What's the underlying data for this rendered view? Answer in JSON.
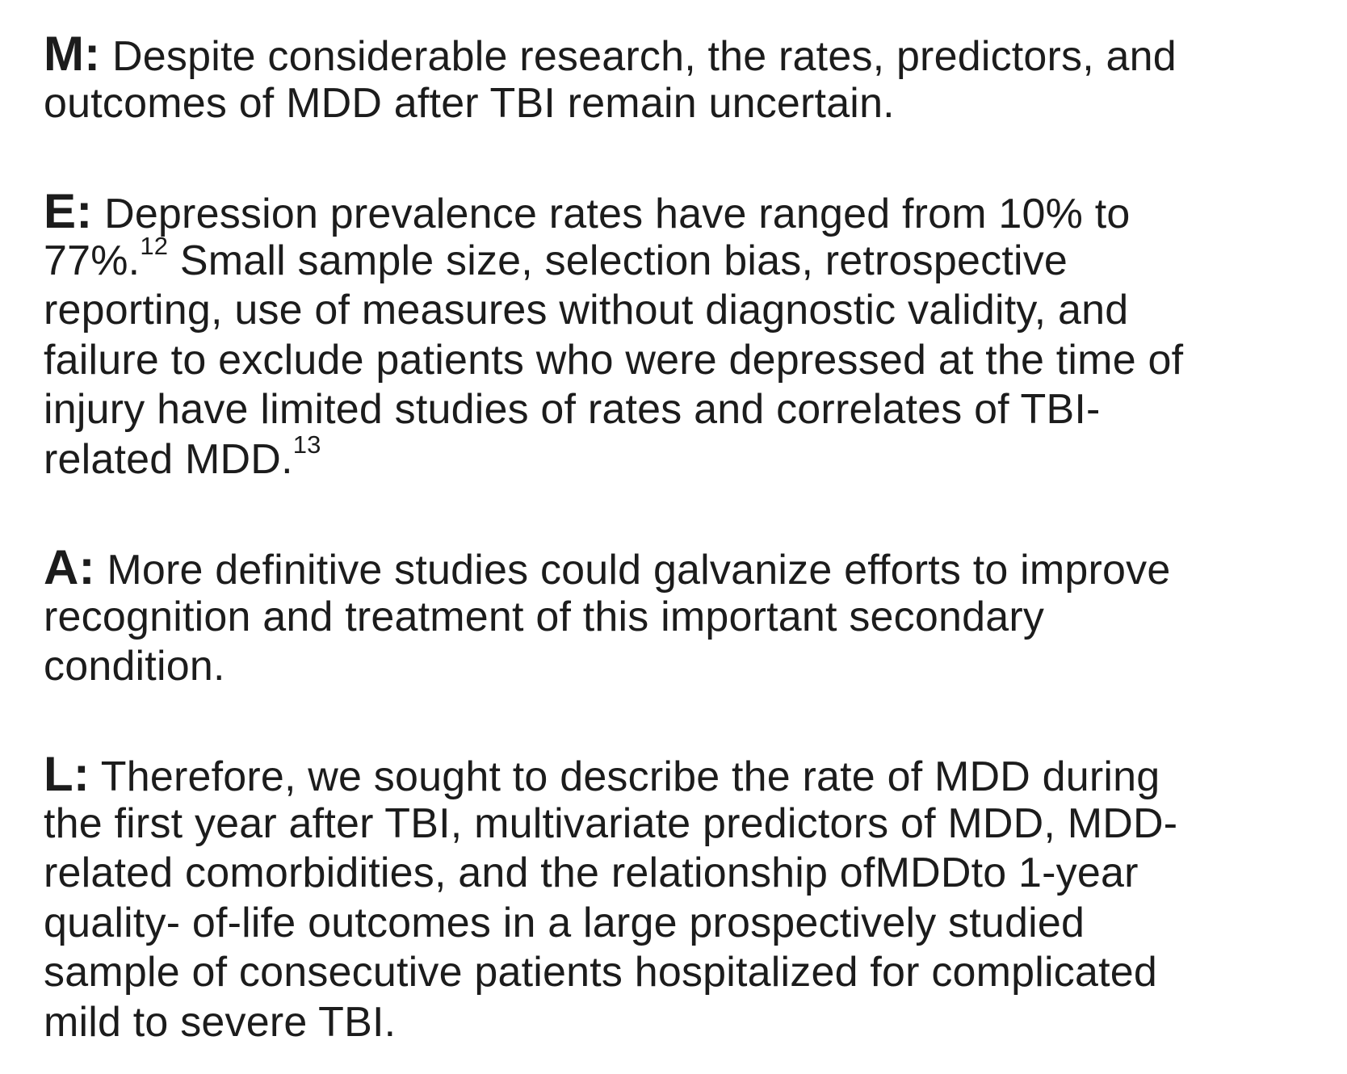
{
  "paragraphs": {
    "m": {
      "letter": "M:",
      "lines": [
        "Despite considerable research, the rates, predictors, and",
        "outcomes of MDD after TBI remain uncertain."
      ]
    },
    "e": {
      "letter": "E:",
      "line1": "Depression prevalence rates have ranged from 10% to",
      "line2_pre": "77%.",
      "ref1": "12",
      "line2_post": "Small sample size, selection bias, retrospective",
      "line3": "reporting, use of measures without diagnostic validity, and",
      "line4": "failure to exclude patients who were depressed at the time of",
      "line5": "injury have limited studies of rates and correlates of TBI-",
      "line6_pre": "related MDD.",
      "ref2": "13"
    },
    "a": {
      "letter": "A:",
      "lines": [
        "More definitive studies could galvanize efforts to improve",
        "recognition and treatment of this important secondary",
        "condition."
      ]
    },
    "l": {
      "letter": "L:",
      "lines": [
        "Therefore, we sought to describe the rate of MDD during",
        "the first year after TBI, multivariate predictors of MDD, MDD-",
        "related comorbidities, and the relationship ofMDDto 1-year",
        "quality- of-life outcomes in a large prospectively studied",
        "sample of consecutive patients hospitalized for complicated",
        "mild to severe TBI."
      ]
    }
  }
}
